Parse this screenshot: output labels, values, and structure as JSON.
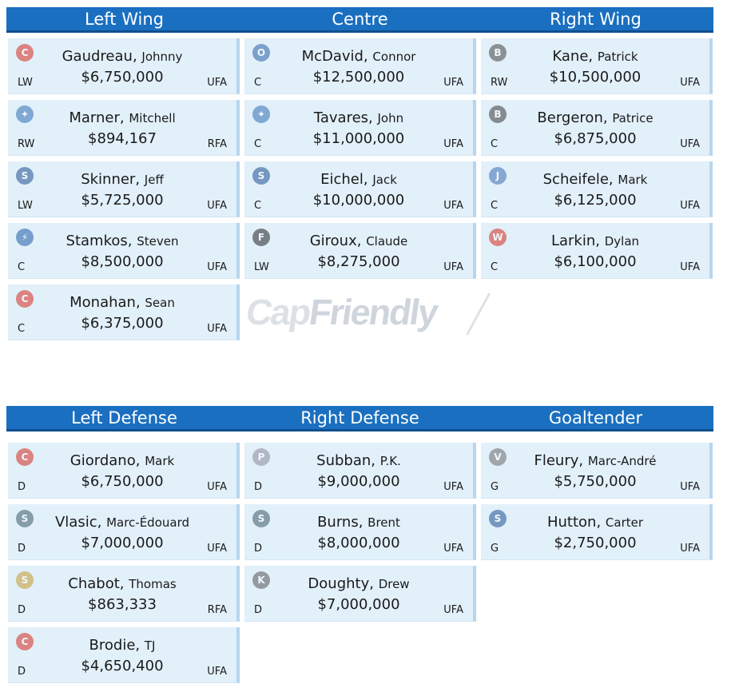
{
  "forwards": {
    "columns": [
      "Left Wing",
      "Centre",
      "Right Wing"
    ],
    "players": [
      [
        {
          "last": "Gaudreau",
          "first": "Johnny",
          "salary": "$6,750,000",
          "pos": "LW",
          "status": "UFA",
          "icon": "flames-logo-icon",
          "color": "#d52b1e",
          "glyph": "C"
        },
        {
          "last": "Marner",
          "first": "Mitchell",
          "salary": "$894,167",
          "pos": "RW",
          "status": "RFA",
          "icon": "maple-leafs-logo-icon",
          "color": "#2f6fb5",
          "glyph": "✦"
        },
        {
          "last": "Skinner",
          "first": "Jeff",
          "salary": "$5,725,000",
          "pos": "LW",
          "status": "UFA",
          "icon": "sabres-logo-icon",
          "color": "#1d4f91",
          "glyph": "S"
        },
        {
          "last": "Stamkos",
          "first": "Steven",
          "salary": "$8,500,000",
          "pos": "C",
          "status": "UFA",
          "icon": "lightning-logo-icon",
          "color": "#1f5ca8",
          "glyph": "⚡"
        },
        {
          "last": "Monahan",
          "first": "Sean",
          "salary": "$6,375,000",
          "pos": "C",
          "status": "UFA",
          "icon": "flames-logo-icon",
          "color": "#d52b1e",
          "glyph": "C"
        }
      ],
      [
        {
          "last": "McDavid",
          "first": "Connor",
          "salary": "$12,500,000",
          "pos": "C",
          "status": "UFA",
          "icon": "oilers-logo-icon",
          "color": "#2a5fa8",
          "glyph": "O"
        },
        {
          "last": "Tavares",
          "first": "John",
          "salary": "$11,000,000",
          "pos": "C",
          "status": "UFA",
          "icon": "maple-leafs-logo-icon",
          "color": "#2f6fb5",
          "glyph": "✦"
        },
        {
          "last": "Eichel",
          "first": "Jack",
          "salary": "$10,000,000",
          "pos": "C",
          "status": "UFA",
          "icon": "sabres-logo-icon",
          "color": "#1d4f91",
          "glyph": "S"
        },
        {
          "last": "Giroux",
          "first": "Claude",
          "salary": "$8,275,000",
          "pos": "LW",
          "status": "UFA",
          "icon": "flyers-logo-icon",
          "color": "#222222",
          "glyph": "F"
        }
      ],
      [
        {
          "last": "Kane",
          "first": "Patrick",
          "salary": "$10,500,000",
          "pos": "RW",
          "status": "UFA",
          "icon": "blackhawks-logo-icon",
          "color": "#444444",
          "glyph": "B"
        },
        {
          "last": "Bergeron",
          "first": "Patrice",
          "salary": "$6,875,000",
          "pos": "C",
          "status": "UFA",
          "icon": "bruins-logo-icon",
          "color": "#3a3a3a",
          "glyph": "B"
        },
        {
          "last": "Scheifele",
          "first": "Mark",
          "salary": "$6,125,000",
          "pos": "C",
          "status": "UFA",
          "icon": "jets-logo-icon",
          "color": "#3d6db5",
          "glyph": "J"
        },
        {
          "last": "Larkin",
          "first": "Dylan",
          "salary": "$6,100,000",
          "pos": "C",
          "status": "UFA",
          "icon": "red-wings-logo-icon",
          "color": "#d52b1e",
          "glyph": "W"
        }
      ]
    ]
  },
  "defense": {
    "columns": [
      "Left Defense",
      "Right Defense",
      "Goaltender"
    ],
    "players": [
      [
        {
          "last": "Giordano",
          "first": "Mark",
          "salary": "$6,750,000",
          "pos": "D",
          "status": "UFA",
          "icon": "flames-logo-icon",
          "color": "#d52b1e",
          "glyph": "C"
        },
        {
          "last": "Vlasic",
          "first": "Marc-Édouard",
          "salary": "$7,000,000",
          "pos": "D",
          "status": "UFA",
          "icon": "sharks-logo-icon",
          "color": "#3a5a6a",
          "glyph": "S"
        },
        {
          "last": "Chabot",
          "first": "Thomas",
          "salary": "$863,333",
          "pos": "D",
          "status": "RFA",
          "icon": "senators-logo-icon",
          "color": "#c59a2a",
          "glyph": "S"
        },
        {
          "last": "Brodie",
          "first": "TJ",
          "salary": "$4,650,400",
          "pos": "D",
          "status": "UFA",
          "icon": "flames-logo-icon",
          "color": "#d52b1e",
          "glyph": "C"
        }
      ],
      [
        {
          "last": "Subban",
          "first": "P.K.",
          "salary": "$9,000,000",
          "pos": "D",
          "status": "UFA",
          "icon": "predators-logo-icon",
          "color": "#8a8a9a",
          "glyph": "P"
        },
        {
          "last": "Burns",
          "first": "Brent",
          "salary": "$8,000,000",
          "pos": "D",
          "status": "UFA",
          "icon": "sharks-logo-icon",
          "color": "#3a5a6a",
          "glyph": "S"
        },
        {
          "last": "Doughty",
          "first": "Drew",
          "salary": "$7,000,000",
          "pos": "D",
          "status": "UFA",
          "icon": "kings-logo-icon",
          "color": "#555555",
          "glyph": "K"
        }
      ],
      [
        {
          "last": "Fleury",
          "first": "Marc-André",
          "salary": "$5,750,000",
          "pos": "G",
          "status": "UFA",
          "icon": "golden-knights-logo-icon",
          "color": "#6b6b6b",
          "glyph": "V"
        },
        {
          "last": "Hutton",
          "first": "Carter",
          "salary": "$2,750,000",
          "pos": "G",
          "status": "UFA",
          "icon": "sabres-logo-icon",
          "color": "#1d4f91",
          "glyph": "S"
        }
      ]
    ]
  },
  "watermark": {
    "brand_a": "Cap",
    "brand_b": "Friendly"
  }
}
